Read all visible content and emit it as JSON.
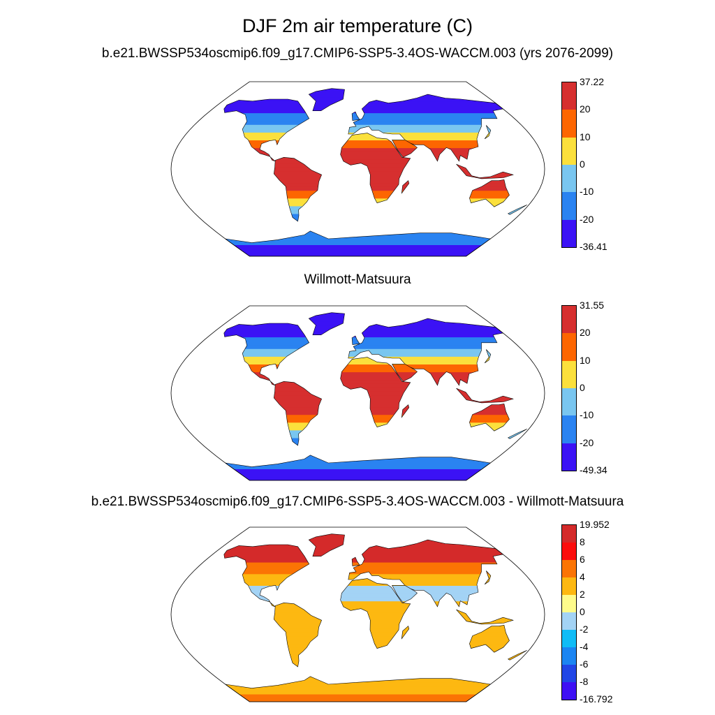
{
  "title": "DJF 2m air temperature (C)",
  "panels": [
    {
      "title": "b.e21.BWSSP534oscmip6.f09_g17.CMIP6-SSP5-3.4OS-WACCM.003 (yrs 2076-2099)",
      "colorbar": {
        "labels": [
          "37.22",
          "20",
          "10",
          "0",
          "-10",
          "-20",
          "-36.41"
        ],
        "colors": [
          "#d62f2f",
          "#fd6601",
          "#fbe03c",
          "#79c6f0",
          "#2a83f1",
          "#3b12f5"
        ]
      }
    },
    {
      "title": "Willmott-Matsuura",
      "colorbar": {
        "labels": [
          "31.55",
          "20",
          "10",
          "0",
          "-10",
          "-20",
          "-49.34"
        ],
        "colors": [
          "#d62f2f",
          "#fd6601",
          "#fbe03c",
          "#79c6f0",
          "#2a83f1",
          "#3b12f5"
        ]
      }
    },
    {
      "title": "b.e21.BWSSP534oscmip6.f09_g17.CMIP6-SSP5-3.4OS-WACCM.003 - Willmott-Matsuura",
      "colorbar": {
        "labels": [
          "19.952",
          "8",
          "6",
          "4",
          "2",
          "0",
          "-2",
          "-4",
          "-6",
          "-8",
          "-16.792"
        ],
        "colors": [
          "#d42a2a",
          "#fb0d0d",
          "#fb7404",
          "#fdb811",
          "#fefb8b",
          "#a3d3f5",
          "#10bcf6",
          "#1b85f2",
          "#2146e6",
          "#3e10f4"
        ]
      }
    }
  ]
}
